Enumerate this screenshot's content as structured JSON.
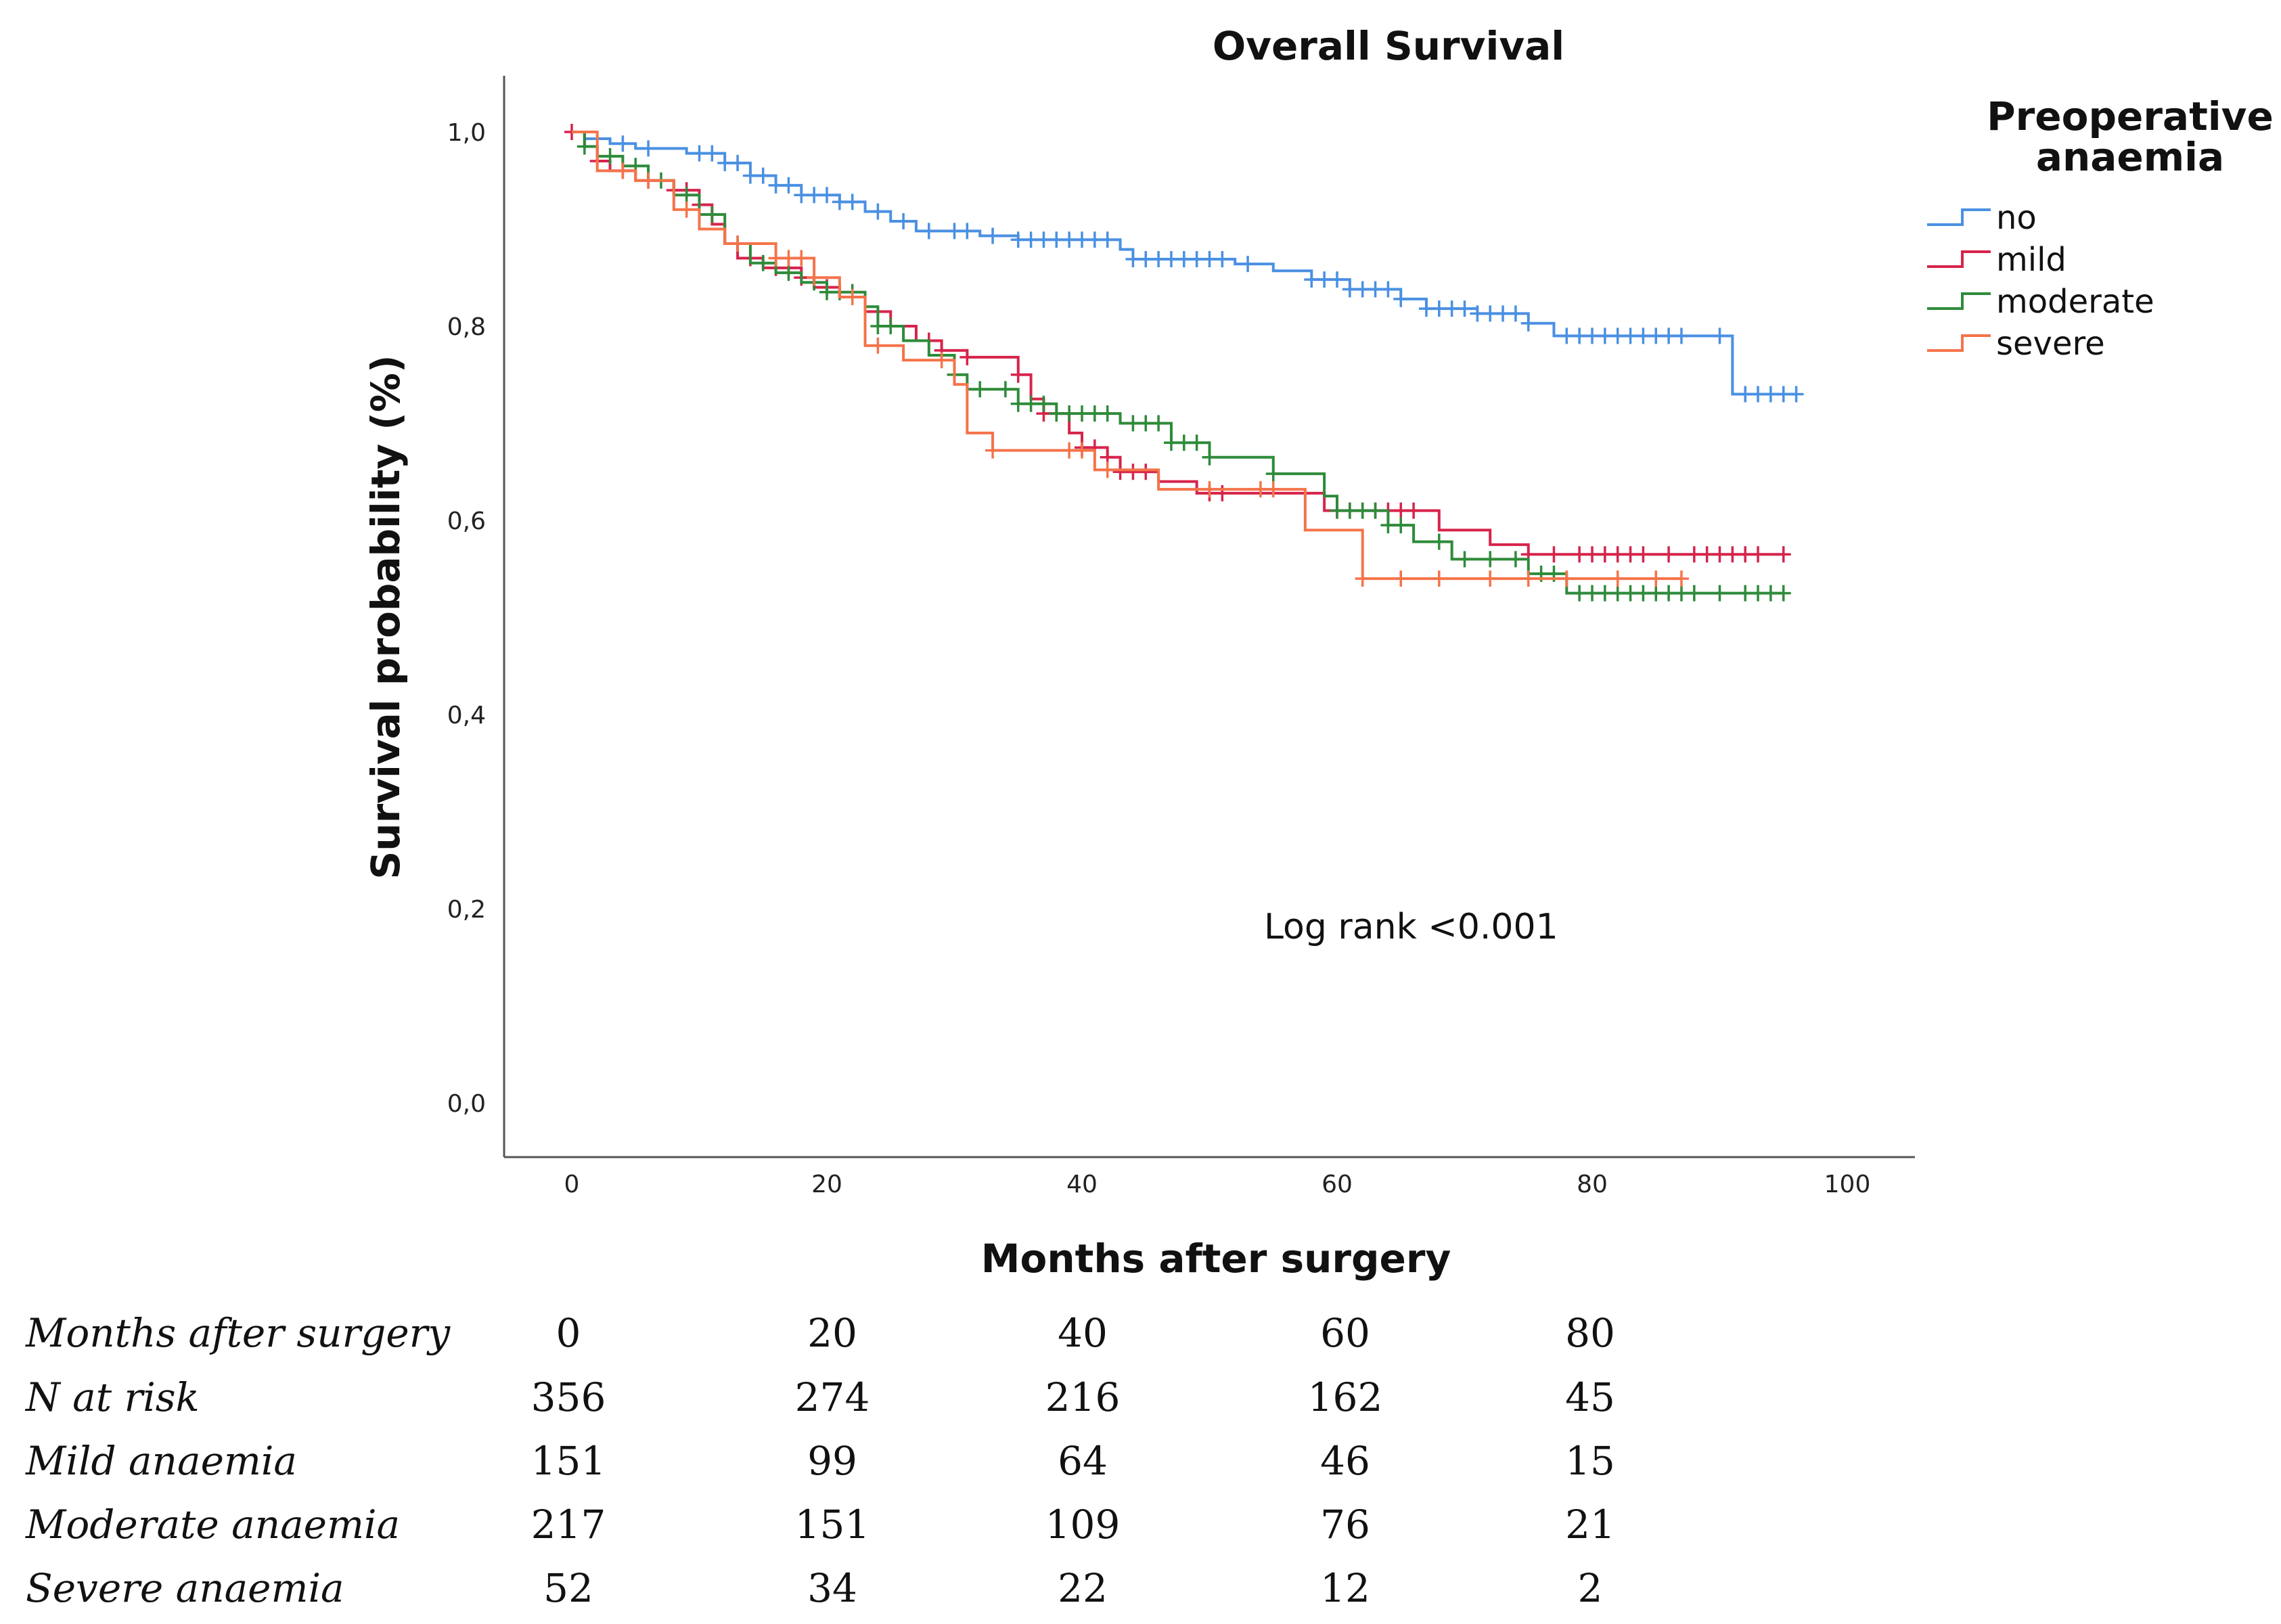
{
  "chart_data": {
    "type": "line",
    "subtype": "kaplan-meier",
    "title": "Overall Survival",
    "xlabel": "Months after surgery",
    "ylabel": "Survival probability (%)",
    "xlim": [
      0,
      100
    ],
    "ylim": [
      0,
      1
    ],
    "x_ticks": [
      0,
      20,
      40,
      60,
      80,
      100
    ],
    "x_tick_labels": [
      "0",
      "20",
      "40",
      "60",
      "80",
      "100"
    ],
    "y_ticks": [
      0,
      0.2,
      0.4,
      0.6,
      0.8,
      1.0
    ],
    "y_tick_labels": [
      "0,0",
      "0,2",
      "0,4",
      "0,6",
      "0,8",
      "1,0"
    ],
    "legend": {
      "title": "Preoperative anaemia",
      "title_lines": [
        "Preoperative",
        "anaemia"
      ],
      "position": "top-right"
    },
    "annotation": "Log rank <0.001",
    "series": [
      {
        "name": "no",
        "color": "#4a90e2",
        "steps": [
          [
            0,
            1.0
          ],
          [
            1,
            0.993
          ],
          [
            3,
            0.988
          ],
          [
            5,
            0.983
          ],
          [
            9,
            0.978
          ],
          [
            12,
            0.968
          ],
          [
            14,
            0.955
          ],
          [
            16,
            0.945
          ],
          [
            18,
            0.935
          ],
          [
            21,
            0.928
          ],
          [
            23,
            0.918
          ],
          [
            25,
            0.908
          ],
          [
            27,
            0.898
          ],
          [
            32,
            0.893
          ],
          [
            35,
            0.889
          ],
          [
            43,
            0.879
          ],
          [
            44,
            0.869
          ],
          [
            52,
            0.864
          ],
          [
            55,
            0.857
          ],
          [
            58,
            0.848
          ],
          [
            61,
            0.838
          ],
          [
            65,
            0.828
          ],
          [
            67,
            0.818
          ],
          [
            71,
            0.813
          ],
          [
            75,
            0.803
          ],
          [
            77,
            0.79
          ],
          [
            91,
            0.73
          ],
          [
            96,
            0.73
          ]
        ],
        "censor_x": [
          2,
          4,
          6,
          10,
          11,
          12,
          13,
          14,
          15,
          16,
          17,
          18,
          19,
          20,
          21,
          22,
          24,
          26,
          28,
          30,
          31,
          33,
          35,
          36,
          37,
          38,
          39,
          40,
          41,
          42,
          44,
          45,
          46,
          47,
          48,
          49,
          50,
          51,
          53,
          58,
          59,
          60,
          61,
          62,
          63,
          64,
          65,
          67,
          68,
          69,
          70,
          71,
          72,
          73,
          74,
          75,
          78,
          79,
          80,
          81,
          82,
          83,
          84,
          85,
          86,
          87,
          90,
          92,
          93,
          94,
          95,
          96
        ]
      },
      {
        "name": "mild",
        "color": "#d6244b",
        "steps": [
          [
            0,
            1.0
          ],
          [
            1,
            0.985
          ],
          [
            2,
            0.97
          ],
          [
            3,
            0.96
          ],
          [
            5,
            0.95
          ],
          [
            8,
            0.94
          ],
          [
            10,
            0.925
          ],
          [
            11,
            0.905
          ],
          [
            12,
            0.885
          ],
          [
            13,
            0.87
          ],
          [
            15,
            0.86
          ],
          [
            18,
            0.85
          ],
          [
            19,
            0.84
          ],
          [
            21,
            0.83
          ],
          [
            23,
            0.815
          ],
          [
            25,
            0.8
          ],
          [
            27,
            0.785
          ],
          [
            29,
            0.775
          ],
          [
            31,
            0.768
          ],
          [
            35,
            0.75
          ],
          [
            36,
            0.725
          ],
          [
            37,
            0.71
          ],
          [
            39,
            0.69
          ],
          [
            40,
            0.675
          ],
          [
            42,
            0.665
          ],
          [
            43,
            0.65
          ],
          [
            46,
            0.64
          ],
          [
            49,
            0.628
          ],
          [
            57,
            0.628
          ],
          [
            59,
            0.61
          ],
          [
            68,
            0.59
          ],
          [
            72,
            0.575
          ],
          [
            75,
            0.565
          ],
          [
            95,
            0.565
          ]
        ],
        "censor_x": [
          0,
          2,
          4,
          6,
          8,
          9,
          10,
          14,
          16,
          17,
          18,
          20,
          25,
          28,
          29,
          31,
          35,
          37,
          38,
          40,
          41,
          42,
          43,
          44,
          45,
          50,
          51,
          60,
          61,
          62,
          63,
          64,
          65,
          66,
          75,
          77,
          79,
          80,
          81,
          82,
          83,
          84,
          86,
          88,
          89,
          90,
          91,
          92,
          93,
          95
        ]
      },
      {
        "name": "moderate",
        "color": "#2e8b3a",
        "steps": [
          [
            0,
            1.0
          ],
          [
            1,
            0.985
          ],
          [
            2,
            0.975
          ],
          [
            4,
            0.965
          ],
          [
            6,
            0.95
          ],
          [
            8,
            0.935
          ],
          [
            10,
            0.915
          ],
          [
            12,
            0.885
          ],
          [
            14,
            0.865
          ],
          [
            16,
            0.855
          ],
          [
            18,
            0.845
          ],
          [
            20,
            0.835
          ],
          [
            23,
            0.82
          ],
          [
            24,
            0.8
          ],
          [
            26,
            0.785
          ],
          [
            28,
            0.77
          ],
          [
            30,
            0.75
          ],
          [
            31,
            0.735
          ],
          [
            35,
            0.72
          ],
          [
            38,
            0.71
          ],
          [
            43,
            0.7
          ],
          [
            47,
            0.68
          ],
          [
            50,
            0.665
          ],
          [
            55,
            0.648
          ],
          [
            59,
            0.625
          ],
          [
            60,
            0.61
          ],
          [
            64,
            0.595
          ],
          [
            66,
            0.578
          ],
          [
            69,
            0.56
          ],
          [
            75,
            0.545
          ],
          [
            78,
            0.525
          ],
          [
            95,
            0.525
          ]
        ],
        "censor_x": [
          1,
          3,
          5,
          7,
          9,
          11,
          13,
          15,
          17,
          19,
          20,
          21,
          22,
          24,
          25,
          30,
          32,
          34,
          35,
          36,
          37,
          38,
          39,
          40,
          41,
          42,
          44,
          45,
          46,
          47,
          48,
          49,
          50,
          55,
          60,
          61,
          62,
          63,
          64,
          65,
          68,
          70,
          72,
          74,
          76,
          77,
          79,
          80,
          81,
          82,
          83,
          84,
          85,
          86,
          87,
          88,
          90,
          92,
          93,
          94,
          95
        ]
      },
      {
        "name": "severe",
        "color": "#f5734a",
        "steps": [
          [
            0,
            1.0
          ],
          [
            2,
            0.96
          ],
          [
            5,
            0.95
          ],
          [
            8,
            0.92
          ],
          [
            10,
            0.9
          ],
          [
            12,
            0.885
          ],
          [
            16,
            0.87
          ],
          [
            19,
            0.85
          ],
          [
            21,
            0.83
          ],
          [
            23,
            0.78
          ],
          [
            26,
            0.765
          ],
          [
            30,
            0.74
          ],
          [
            31,
            0.69
          ],
          [
            33,
            0.672
          ],
          [
            38,
            0.672
          ],
          [
            41,
            0.652
          ],
          [
            46,
            0.632
          ],
          [
            57,
            0.632
          ],
          [
            57.5,
            0.59
          ],
          [
            62,
            0.54
          ],
          [
            87,
            0.54
          ]
        ],
        "censor_x": [
          4,
          6,
          9,
          13,
          16,
          17,
          18,
          19,
          22,
          24,
          29,
          33,
          39,
          40,
          42,
          50,
          54,
          55,
          62,
          65,
          68,
          72,
          75,
          78,
          82,
          85,
          87
        ]
      }
    ]
  },
  "risk_table": {
    "header_label": "Months after surgery",
    "header_values": [
      "0",
      "20",
      "40",
      "60",
      "80"
    ],
    "rows": [
      {
        "label": "N at risk",
        "values": [
          "356",
          "274",
          "216",
          "162",
          "45"
        ]
      },
      {
        "label": "Mild anaemia",
        "values": [
          "151",
          "99",
          "64",
          "46",
          "15"
        ]
      },
      {
        "label": "Moderate anaemia",
        "values": [
          "217",
          "151",
          "109",
          "76",
          "21"
        ]
      },
      {
        "label": "Severe anaemia",
        "values": [
          "52",
          "34",
          "22",
          "12",
          "2"
        ]
      }
    ]
  }
}
